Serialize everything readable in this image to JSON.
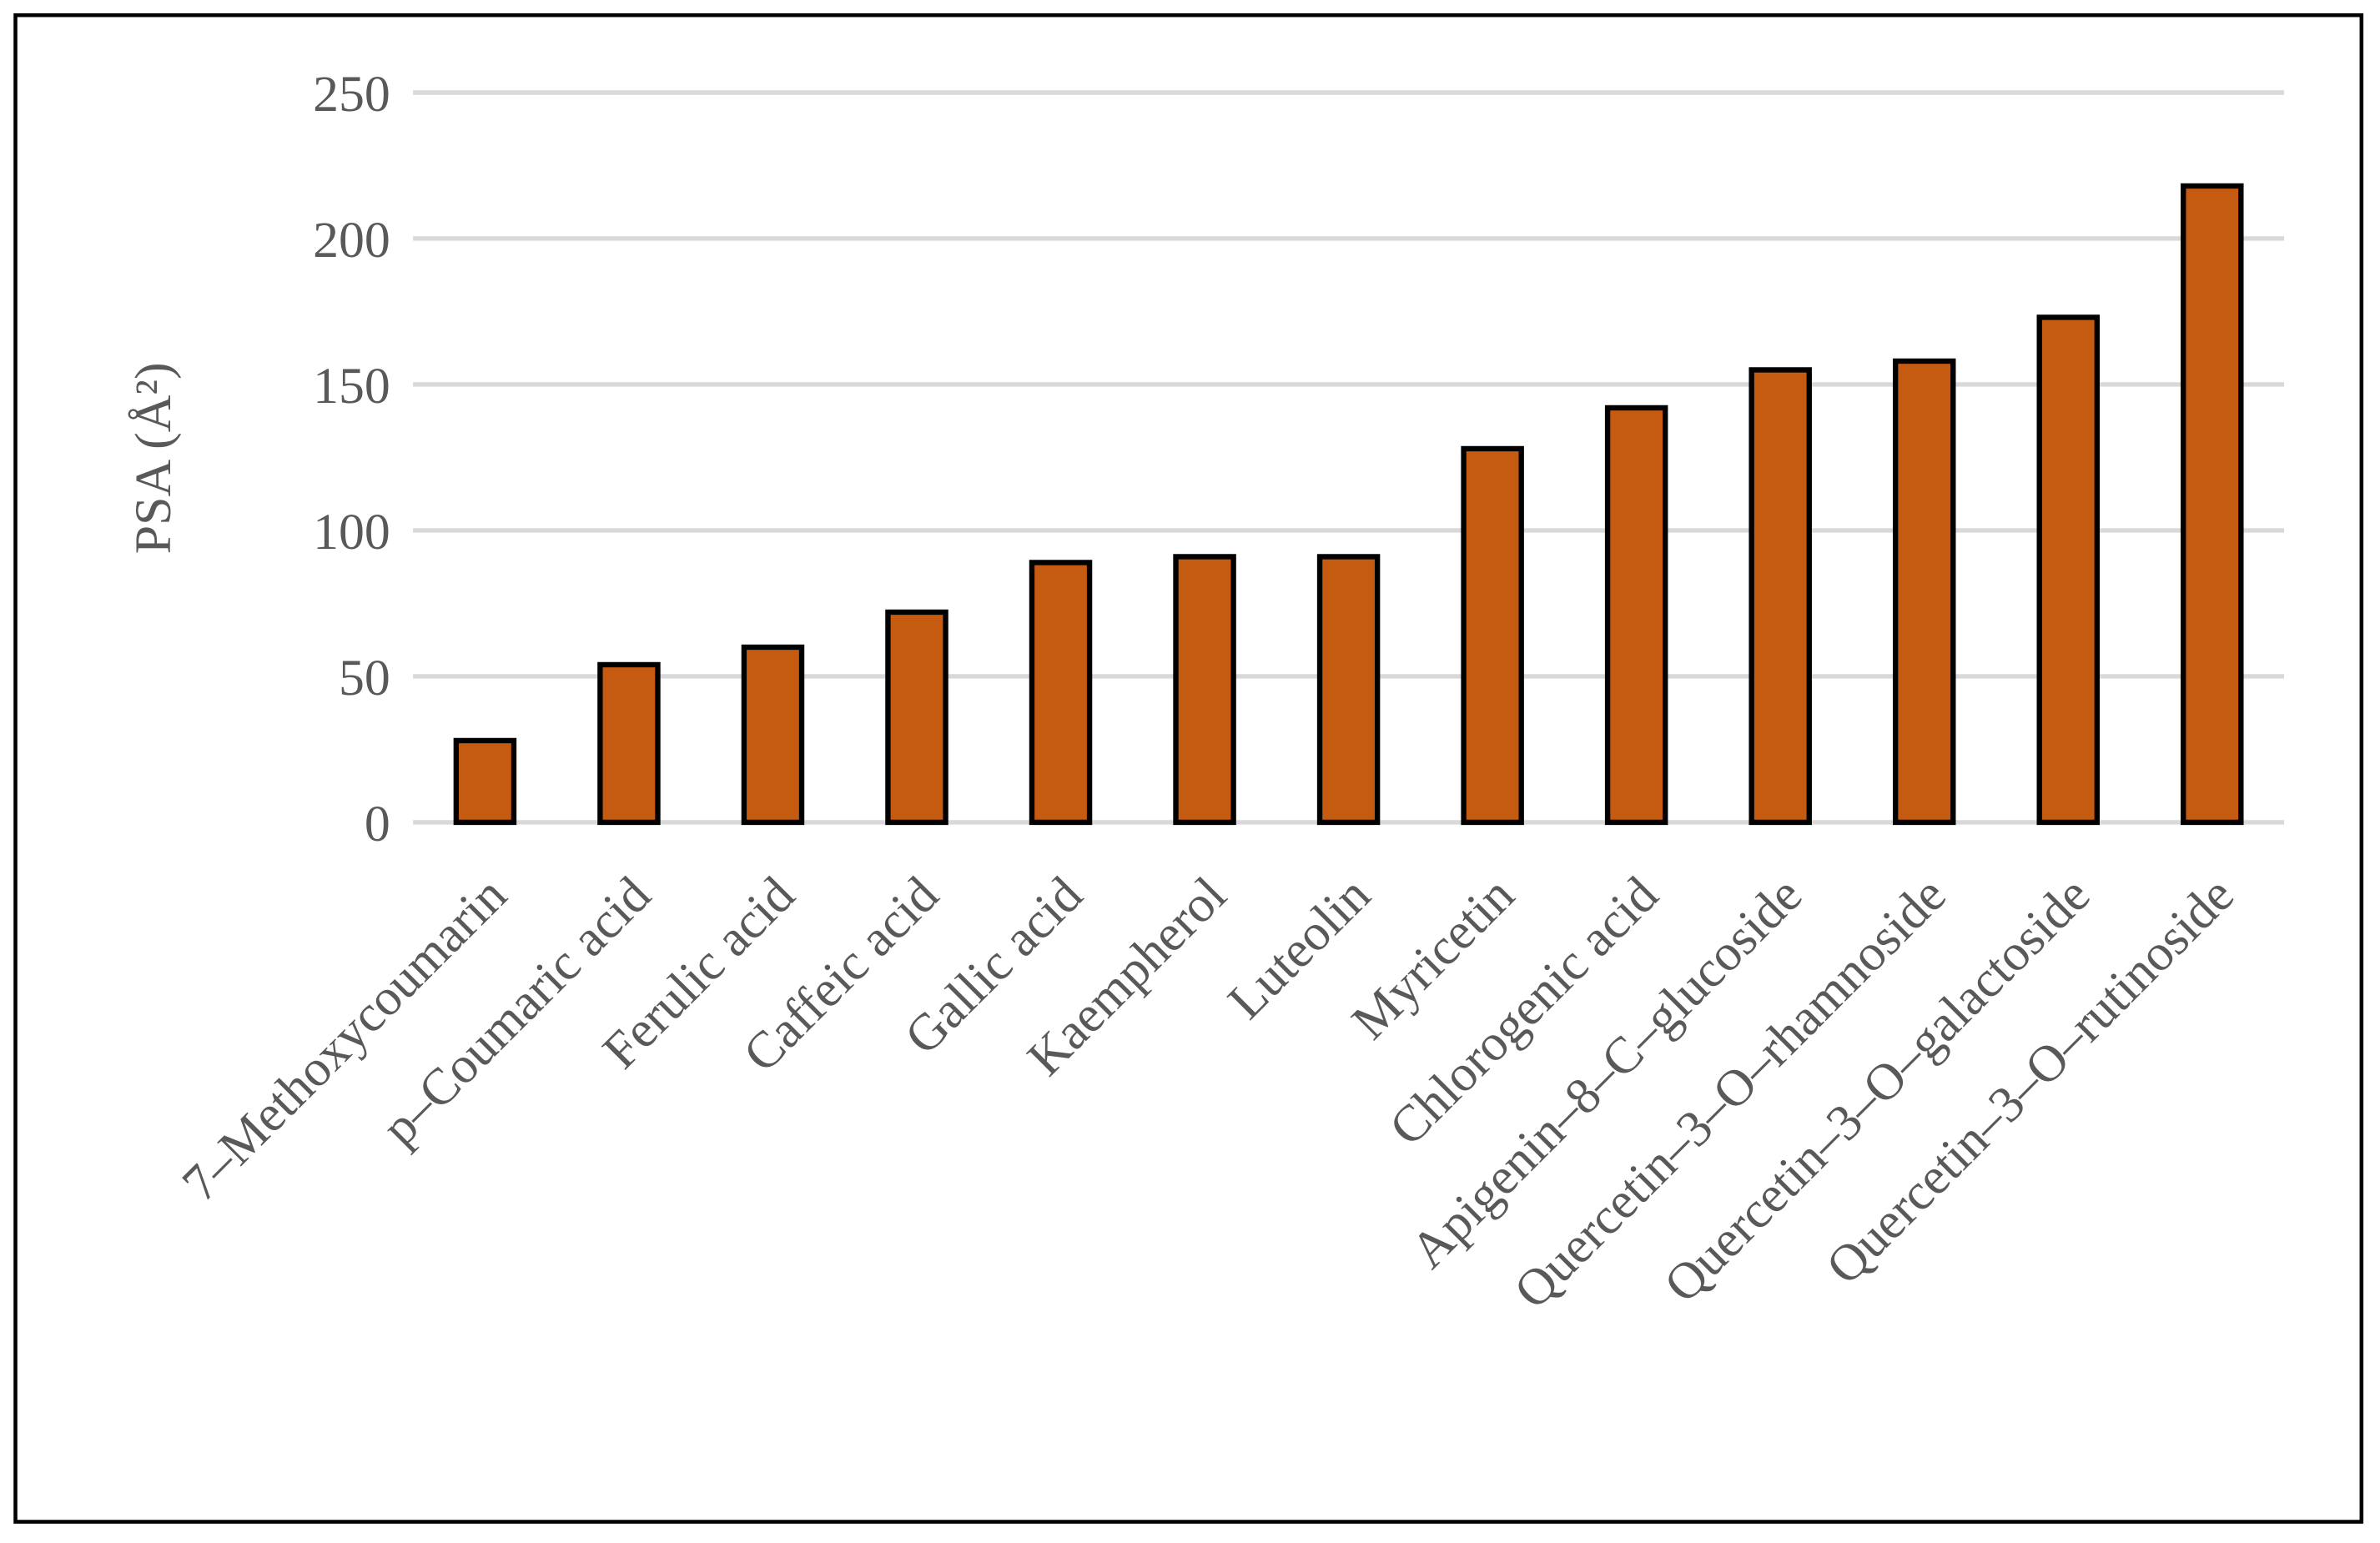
{
  "chart_data": {
    "type": "bar",
    "title": "",
    "xlabel": "",
    "ylabel": "PSA (Å²)",
    "ylim": [
      0,
      250
    ],
    "yticks": [
      0,
      50,
      100,
      150,
      200,
      250
    ],
    "grid": true,
    "legend": "none",
    "categories": [
      "7–Methoxycoumarin",
      "p–Coumaric acid",
      "Ferulic acid",
      "Caffeic acid",
      "Gallic acid",
      "Kaempherol",
      "Luteolin",
      "Myricetin",
      "Chlorogenic acid",
      "Apigenin–8–C–glucoside",
      "Quercetin–3–O–rhamnoside",
      "Quercetin–3–O–galactoside",
      "Quercetin–3–O–rutinoside"
    ],
    "values": [
      28,
      54,
      60,
      72,
      89,
      91,
      91,
      128,
      142,
      155,
      158,
      173,
      218
    ],
    "colors": {
      "bar": "#C55A11",
      "bar_edge": "#000000",
      "grid": "#D9D9D9",
      "text": "#595959"
    }
  }
}
